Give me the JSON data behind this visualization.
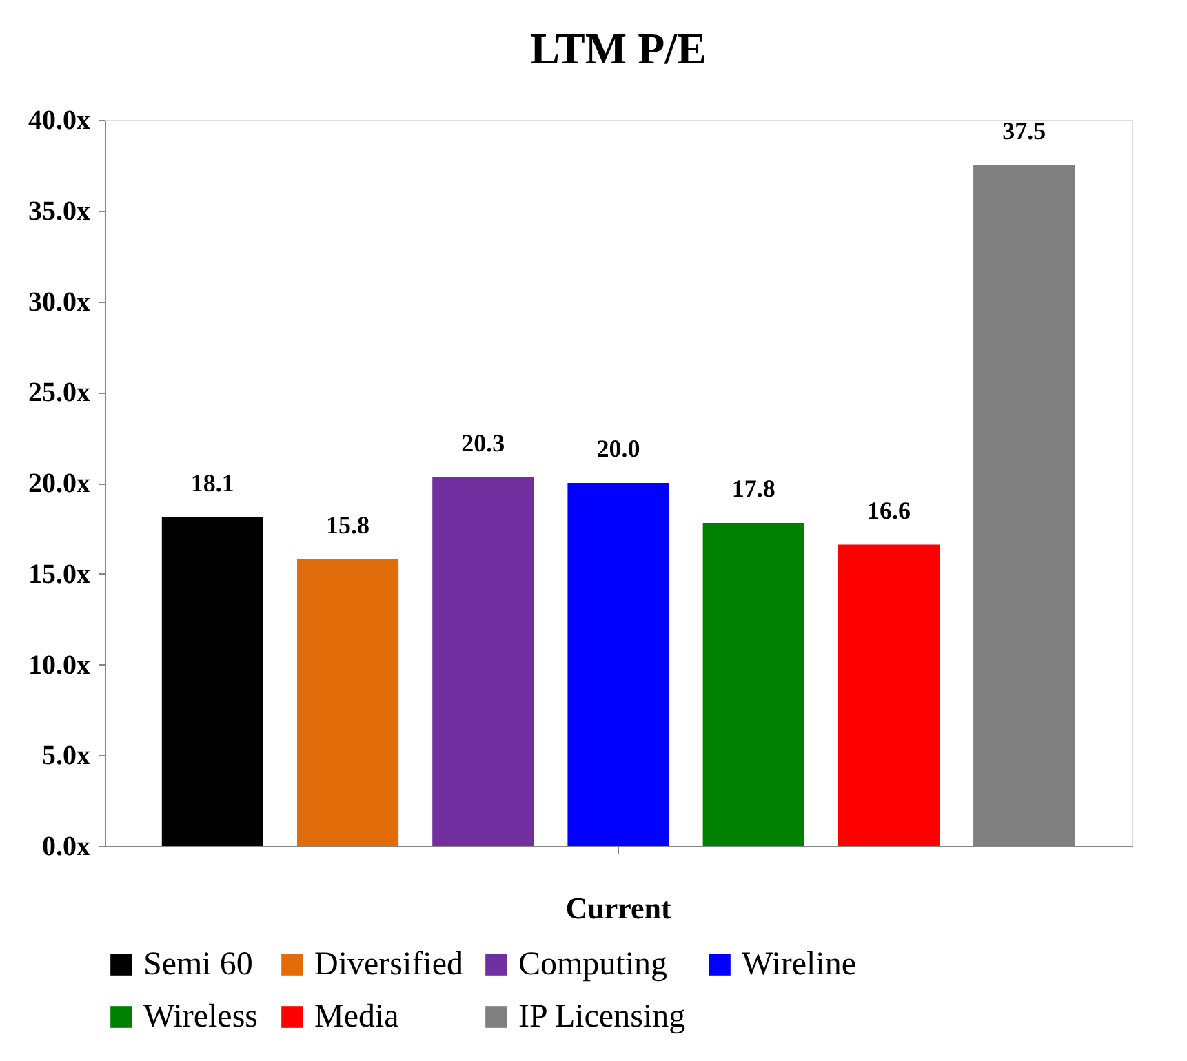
{
  "chart_data": {
    "type": "bar",
    "title": "LTM P/E",
    "categories": [
      "Current"
    ],
    "series": [
      {
        "name": "Semi 60",
        "color": "#000000",
        "values": [
          18.1
        ],
        "value_labels": [
          "18.1"
        ]
      },
      {
        "name": "Diversified",
        "color": "#e36c0a",
        "values": [
          15.8
        ],
        "value_labels": [
          "15.8"
        ]
      },
      {
        "name": "Computing",
        "color": "#7030a0",
        "values": [
          20.3
        ],
        "value_labels": [
          "20.3"
        ]
      },
      {
        "name": "Wireline",
        "color": "#0000ff",
        "values": [
          20.0
        ],
        "value_labels": [
          "20.0"
        ]
      },
      {
        "name": "Wireless",
        "color": "#008000",
        "values": [
          17.8
        ],
        "value_labels": [
          "17.8"
        ]
      },
      {
        "name": "Media",
        "color": "#ff0000",
        "values": [
          16.6
        ],
        "value_labels": [
          "16.6"
        ]
      },
      {
        "name": "IP Licensing",
        "color": "#808080",
        "values": [
          37.5
        ],
        "value_labels": [
          "37.5"
        ]
      }
    ],
    "ylim": [
      0,
      40
    ],
    "yticks": [
      {
        "value": 0,
        "label": "0.0x"
      },
      {
        "value": 5,
        "label": "5.0x"
      },
      {
        "value": 10,
        "label": "10.0x"
      },
      {
        "value": 15,
        "label": "15.0x"
      },
      {
        "value": 20,
        "label": "20.0x"
      },
      {
        "value": 25,
        "label": "25.0x"
      },
      {
        "value": 30,
        "label": "30.0x"
      },
      {
        "value": 35,
        "label": "35.0x"
      },
      {
        "value": 40,
        "label": "40.0x"
      }
    ],
    "grid": false,
    "legend": "bottom"
  }
}
